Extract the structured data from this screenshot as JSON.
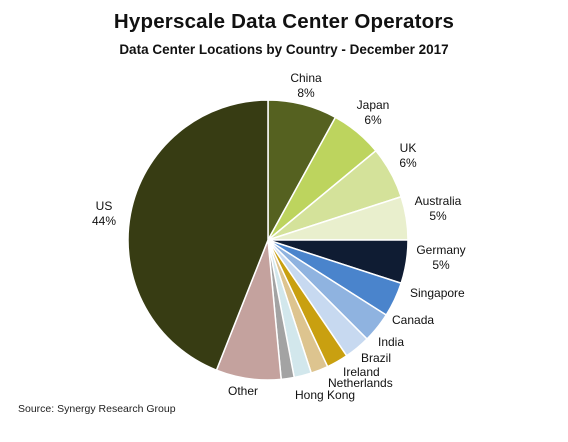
{
  "chart_data": {
    "type": "pie",
    "title": "Hyperscale Data Center Operators",
    "subtitle": "Data Center Locations by Country - December 2017",
    "source": "Source: Synergy Research Group",
    "slices": [
      {
        "label": "US",
        "value_label": "44%",
        "value": 44,
        "color": "#373c13"
      },
      {
        "label": "China",
        "value_label": "8%",
        "value": 8,
        "color": "#556120"
      },
      {
        "label": "Japan",
        "value_label": "6%",
        "value": 6,
        "color": "#bdd45e"
      },
      {
        "label": "UK",
        "value_label": "6%",
        "value": 6,
        "color": "#d4e29a"
      },
      {
        "label": "Australia",
        "value_label": "5%",
        "value": 5,
        "color": "#e9efcd"
      },
      {
        "label": "Germany",
        "value_label": "5%",
        "value": 5,
        "color": "#0f1c33"
      },
      {
        "label": "Singapore",
        "value_label": "",
        "value": 4,
        "color": "#4a84cc"
      },
      {
        "label": "Canada",
        "value_label": "",
        "value": 3.5,
        "color": "#8fb3e0"
      },
      {
        "label": "India",
        "value_label": "",
        "value": 3,
        "color": "#c7d9f0"
      },
      {
        "label": "Brazil",
        "value_label": "",
        "value": 2.5,
        "color": "#c9a010"
      },
      {
        "label": "Ireland",
        "value_label": "",
        "value": 2,
        "color": "#ddc48f"
      },
      {
        "label": "Netherlands",
        "value_label": "",
        "value": 2,
        "color": "#d2e7ec"
      },
      {
        "label": "Hong Kong",
        "value_label": "",
        "value": 1.5,
        "color": "#a3a3a3"
      },
      {
        "label": "Other",
        "value_label": "",
        "value": 7.5,
        "color": "#c4a29e"
      }
    ]
  }
}
